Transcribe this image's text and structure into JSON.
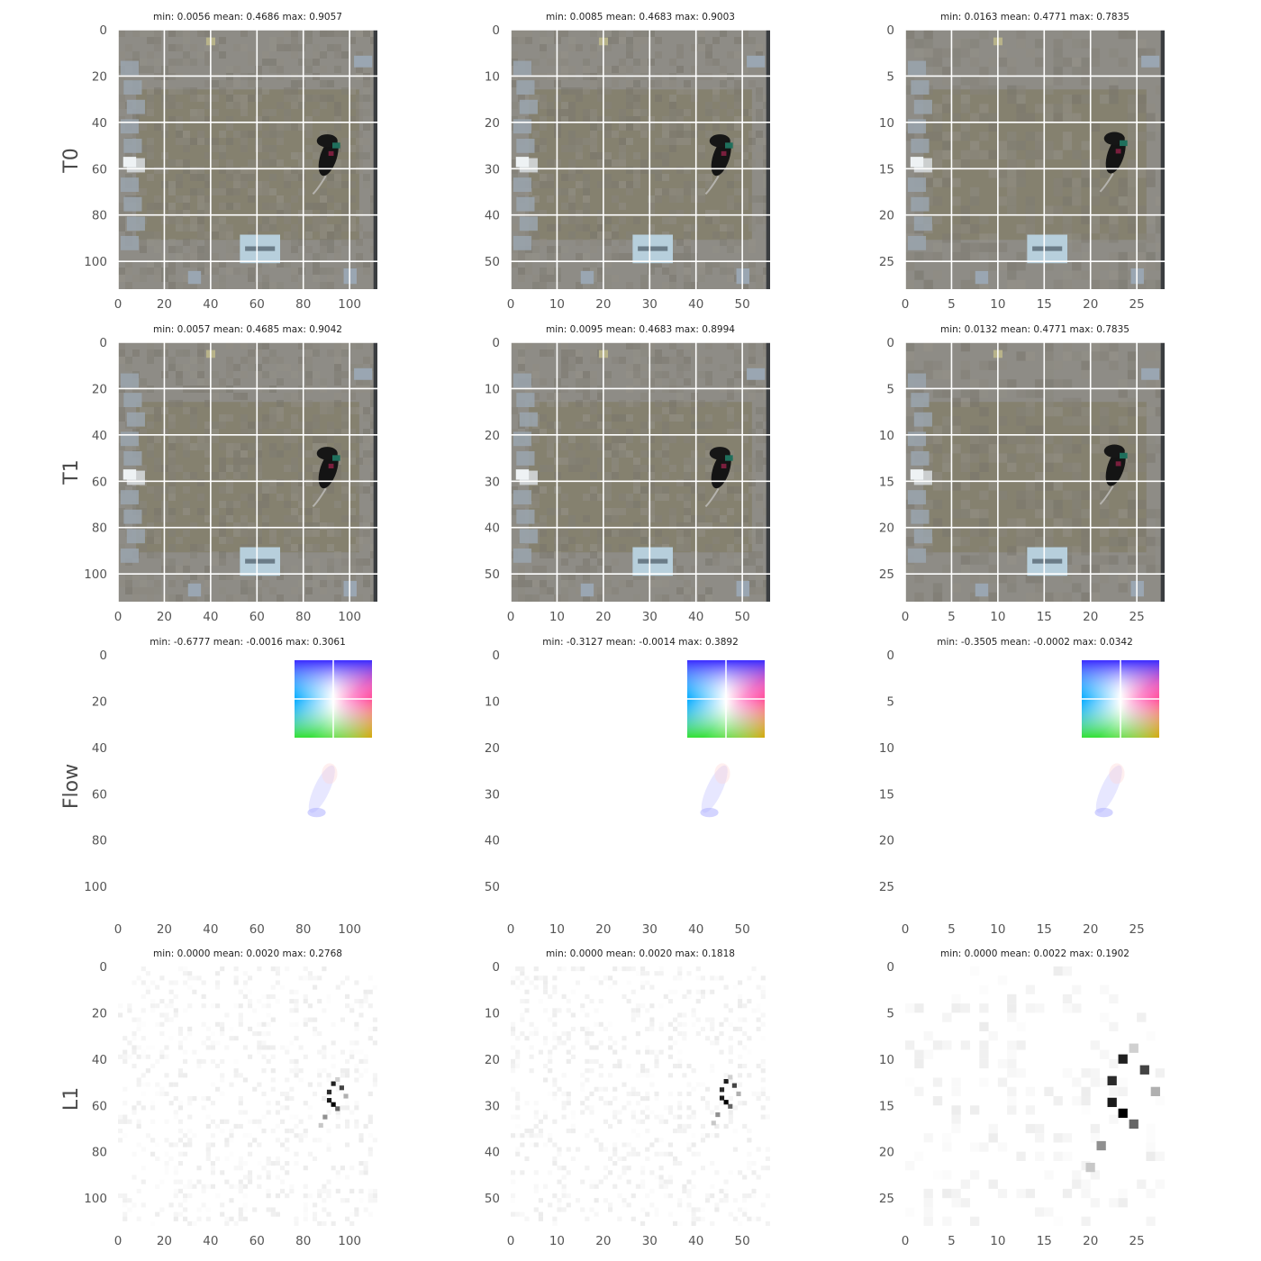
{
  "figure": {
    "row_labels": [
      "T0",
      "T1",
      "Flow",
      "L1"
    ]
  },
  "chart_data": [
    {
      "type": "heatmap",
      "row": 0,
      "col": 0,
      "row_label": "T0",
      "kind": "image",
      "title": "min: 0.0056 mean: 0.4686 max: 0.9057",
      "xlim": [
        0,
        112
      ],
      "ylim": [
        0,
        112
      ],
      "xticks": [
        0,
        20,
        40,
        60,
        80,
        100
      ],
      "yticks": [
        0,
        20,
        40,
        60,
        80,
        100
      ],
      "grid": true,
      "mouse": {
        "x": 92,
        "y": 53
      }
    },
    {
      "type": "heatmap",
      "row": 0,
      "col": 1,
      "row_label": "T0",
      "kind": "image",
      "title": "min: 0.0085 mean: 0.4683 max: 0.9003",
      "xlim": [
        0,
        56
      ],
      "ylim": [
        0,
        56
      ],
      "xticks": [
        0,
        10,
        20,
        30,
        40,
        50
      ],
      "yticks": [
        0,
        10,
        20,
        30,
        40,
        50
      ],
      "grid": true,
      "mouse": {
        "x": 46,
        "y": 26.5
      }
    },
    {
      "type": "heatmap",
      "row": 0,
      "col": 2,
      "row_label": "T0",
      "kind": "image",
      "title": "min: 0.0163 mean: 0.4771 max: 0.7835",
      "xlim": [
        0,
        28
      ],
      "ylim": [
        0,
        28
      ],
      "xticks": [
        0,
        5,
        10,
        15,
        20,
        25
      ],
      "yticks": [
        0,
        5,
        10,
        15,
        20,
        25
      ],
      "grid": true,
      "mouse": {
        "x": 23,
        "y": 13
      }
    },
    {
      "type": "heatmap",
      "row": 1,
      "col": 0,
      "row_label": "T1",
      "kind": "image",
      "title": "min: 0.0057 mean: 0.4685 max: 0.9042",
      "xlim": [
        0,
        112
      ],
      "ylim": [
        0,
        112
      ],
      "xticks": [
        0,
        20,
        40,
        60,
        80,
        100
      ],
      "yticks": [
        0,
        20,
        40,
        60,
        80,
        100
      ],
      "grid": true,
      "mouse": {
        "x": 92,
        "y": 53
      }
    },
    {
      "type": "heatmap",
      "row": 1,
      "col": 1,
      "row_label": "T1",
      "kind": "image",
      "title": "min: 0.0095 mean: 0.4683 max: 0.8994",
      "xlim": [
        0,
        56
      ],
      "ylim": [
        0,
        56
      ],
      "xticks": [
        0,
        10,
        20,
        30,
        40,
        50
      ],
      "yticks": [
        0,
        10,
        20,
        30,
        40,
        50
      ],
      "grid": true,
      "mouse": {
        "x": 46,
        "y": 26.5
      }
    },
    {
      "type": "heatmap",
      "row": 1,
      "col": 2,
      "row_label": "T1",
      "kind": "image",
      "title": "min: 0.0132 mean: 0.4771 max: 0.7835",
      "xlim": [
        0,
        28
      ],
      "ylim": [
        0,
        28
      ],
      "xticks": [
        0,
        5,
        10,
        15,
        20,
        25
      ],
      "yticks": [
        0,
        5,
        10,
        15,
        20,
        25
      ],
      "grid": true,
      "mouse": {
        "x": 23,
        "y": 13
      }
    },
    {
      "type": "heatmap",
      "row": 2,
      "col": 0,
      "row_label": "Flow",
      "kind": "flow",
      "title": "min: -0.6777 mean: -0.0016 max: 0.3061",
      "xlim": [
        0,
        112
      ],
      "ylim": [
        0,
        112
      ],
      "xticks": [
        0,
        20,
        40,
        60,
        80,
        100
      ],
      "yticks": [
        0,
        20,
        40,
        60,
        80,
        100
      ],
      "grid": false,
      "mouse": {
        "x": 88,
        "y": 58
      }
    },
    {
      "type": "heatmap",
      "row": 2,
      "col": 1,
      "row_label": "Flow",
      "kind": "flow",
      "title": "min: -0.3127 mean: -0.0014 max: 0.3892",
      "xlim": [
        0,
        56
      ],
      "ylim": [
        0,
        56
      ],
      "xticks": [
        0,
        10,
        20,
        30,
        40,
        50
      ],
      "yticks": [
        0,
        10,
        20,
        30,
        40,
        50
      ],
      "grid": false,
      "mouse": {
        "x": 44,
        "y": 29
      }
    },
    {
      "type": "heatmap",
      "row": 2,
      "col": 2,
      "row_label": "Flow",
      "kind": "flow",
      "title": "min: -0.3505 mean: -0.0002 max: 0.0342",
      "xlim": [
        0,
        28
      ],
      "ylim": [
        0,
        28
      ],
      "xticks": [
        0,
        5,
        10,
        15,
        20,
        25
      ],
      "yticks": [
        0,
        5,
        10,
        15,
        20,
        25
      ],
      "grid": false,
      "mouse": {
        "x": 22,
        "y": 14.5
      }
    },
    {
      "type": "heatmap",
      "row": 3,
      "col": 0,
      "row_label": "L1",
      "kind": "l1",
      "title": "min: 0.0000 mean: 0.0020 max: 0.2768",
      "xlim": [
        0,
        112
      ],
      "ylim": [
        0,
        112
      ],
      "xticks": [
        0,
        20,
        40,
        60,
        80,
        100
      ],
      "yticks": [
        0,
        20,
        40,
        60,
        80,
        100
      ],
      "grid": false,
      "mouse": {
        "x": 92,
        "y": 55
      }
    },
    {
      "type": "heatmap",
      "row": 3,
      "col": 1,
      "row_label": "L1",
      "kind": "l1",
      "title": "min: 0.0000 mean: 0.0020 max: 0.1818",
      "xlim": [
        0,
        56
      ],
      "ylim": [
        0,
        56
      ],
      "xticks": [
        0,
        10,
        20,
        30,
        40,
        50
      ],
      "yticks": [
        0,
        10,
        20,
        30,
        40,
        50
      ],
      "grid": false,
      "mouse": {
        "x": 46,
        "y": 27
      }
    },
    {
      "type": "heatmap",
      "row": 3,
      "col": 2,
      "row_label": "L1",
      "kind": "l1",
      "title": "min: 0.0000 mean: 0.0022 max: 0.1902",
      "xlim": [
        0,
        28
      ],
      "ylim": [
        0,
        28
      ],
      "xticks": [
        0,
        5,
        10,
        15,
        20,
        25
      ],
      "yticks": [
        0,
        5,
        10,
        15,
        20,
        25
      ],
      "grid": false,
      "mouse": {
        "x": 23,
        "y": 13
      }
    }
  ]
}
